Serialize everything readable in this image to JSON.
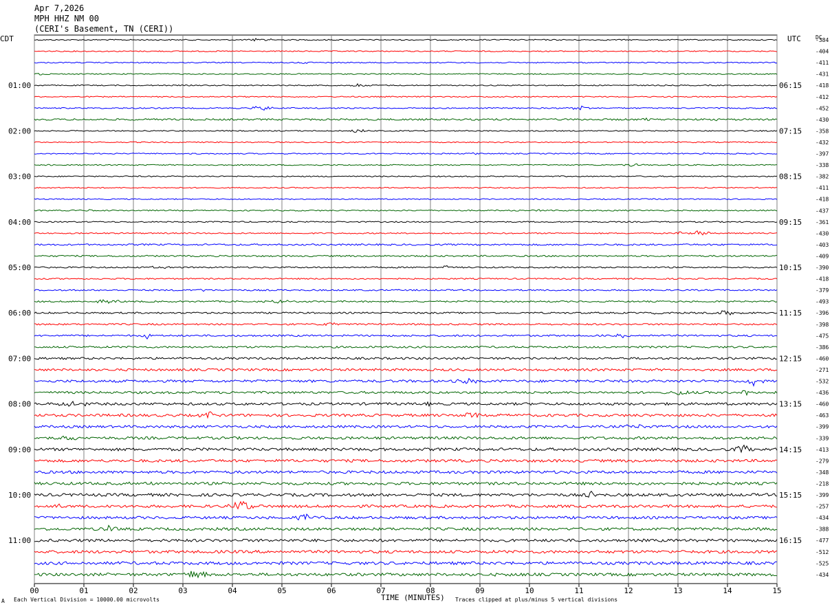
{
  "header": {
    "date": "Apr 7,2026",
    "station": "MPH HHZ NM 00",
    "location": "(CERI's Basement, TN (CERI))"
  },
  "left_tz": "CDT",
  "right_tz": "UTC",
  "dc_label": "DC",
  "footer": {
    "scale_note": "Each Vertical Division = 10000.00 microvolts",
    "xlabel": "TIME (MINUTES)",
    "clip_note": "Traces clipped at plus/minus 5 vertical divisions",
    "corner_mark": "A"
  },
  "colors": {
    "trace_cycle": [
      "#000000",
      "#ff0000",
      "#0000ff",
      "#006400"
    ],
    "grid": "#808080"
  },
  "chart_data": {
    "type": "line",
    "title": "MPH HHZ NM 00",
    "xlabel": "TIME (MINUTES)",
    "xlim": [
      0,
      15
    ],
    "x_ticks": [
      "00",
      "01",
      "02",
      "03",
      "04",
      "05",
      "06",
      "07",
      "08",
      "09",
      "10",
      "11",
      "12",
      "13",
      "14",
      "15"
    ],
    "trace_count": 48,
    "left_time_labels": [
      "01:00",
      "02:00",
      "03:00",
      "04:00",
      "05:00",
      "06:00",
      "07:00",
      "08:00",
      "09:00",
      "10:00",
      "11:00"
    ],
    "right_time_labels": [
      "06:15",
      "07:15",
      "08:15",
      "09:15",
      "10:15",
      "11:15",
      "12:15",
      "13:15",
      "14:15",
      "15:15",
      "16:15"
    ],
    "dc_offsets": [
      "-384",
      "-404",
      "-411",
      "-431",
      "-418",
      "-412",
      "-452",
      "-430",
      "-358",
      "-432",
      "-397",
      "-338",
      "-382",
      "-411",
      "-418",
      "-437",
      "-361",
      "-430",
      "-403",
      "-409",
      "-390",
      "-418",
      "-379",
      "-493",
      "-396",
      "-398",
      "-475",
      "-386",
      "-460",
      "-271",
      "-532",
      "-436",
      "-460",
      "-463",
      "-399",
      "-339",
      "-413",
      "-279",
      "-348",
      "-218",
      "-399",
      "-257",
      "-434",
      "-388",
      "-477",
      "-512",
      "-525",
      "-434"
    ],
    "noise_level": [
      1.0,
      1.0,
      1.0,
      1.0,
      1.0,
      1.0,
      1.1,
      1.6,
      1.0,
      1.0,
      1.0,
      1.0,
      1.0,
      1.0,
      1.0,
      1.1,
      1.1,
      1.1,
      1.5,
      1.4,
      1.3,
      1.2,
      1.3,
      1.4,
      1.5,
      1.5,
      1.6,
      1.7,
      1.9,
      2.1,
      2.3,
      2.1,
      2.3,
      2.4,
      2.2,
      2.4,
      2.6,
      2.5,
      2.5,
      2.5,
      2.6,
      2.5,
      2.4,
      2.5,
      2.5,
      2.6,
      2.7,
      2.6
    ]
  }
}
